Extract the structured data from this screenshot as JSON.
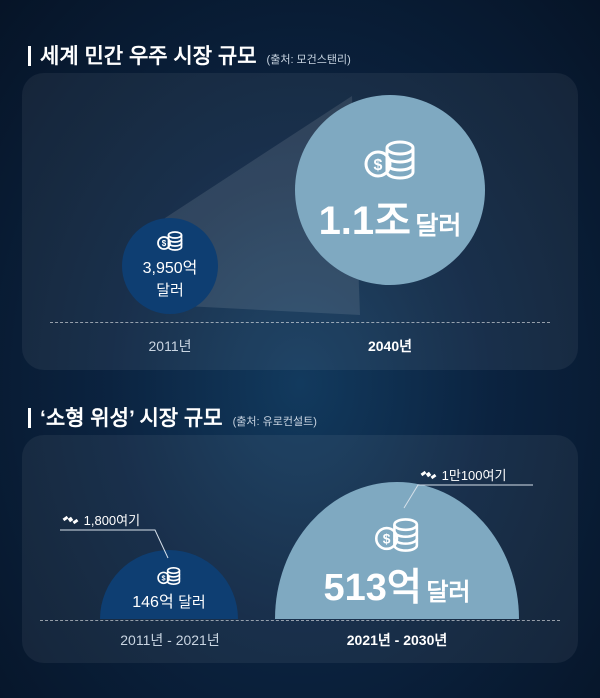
{
  "section1": {
    "title": "세계 민간 우주 시장 규모",
    "source": "(출처: 모건스탠리)"
  },
  "section2": {
    "title": "‘소형 위성’ 시장 규모",
    "source": "(출처: 유로컨설트)"
  },
  "chart_data": [
    {
      "type": "bubble",
      "categories": [
        "2011년",
        "2040년"
      ],
      "values": [
        3950,
        11000
      ],
      "value_labels": [
        "3,950억",
        "1.1조"
      ],
      "unit_labels": [
        "달러",
        "달러"
      ]
    },
    {
      "type": "semicircle",
      "categories": [
        "2011년 - 2021년",
        "2021년 - 2030년"
      ],
      "values": [
        146,
        513
      ],
      "value_labels": [
        "146억",
        "513억"
      ],
      "unit_label": "달러",
      "satellite_counts": [
        "1,800여기",
        "1만100여기"
      ]
    }
  ],
  "colors": {
    "dark_circle": "#0e3e72",
    "light_circle": "#7fa9c1",
    "coin_dark": "#ffffff",
    "coin_light": "#ffffff"
  },
  "icons": [
    "coins-icon",
    "satellite-icon"
  ]
}
